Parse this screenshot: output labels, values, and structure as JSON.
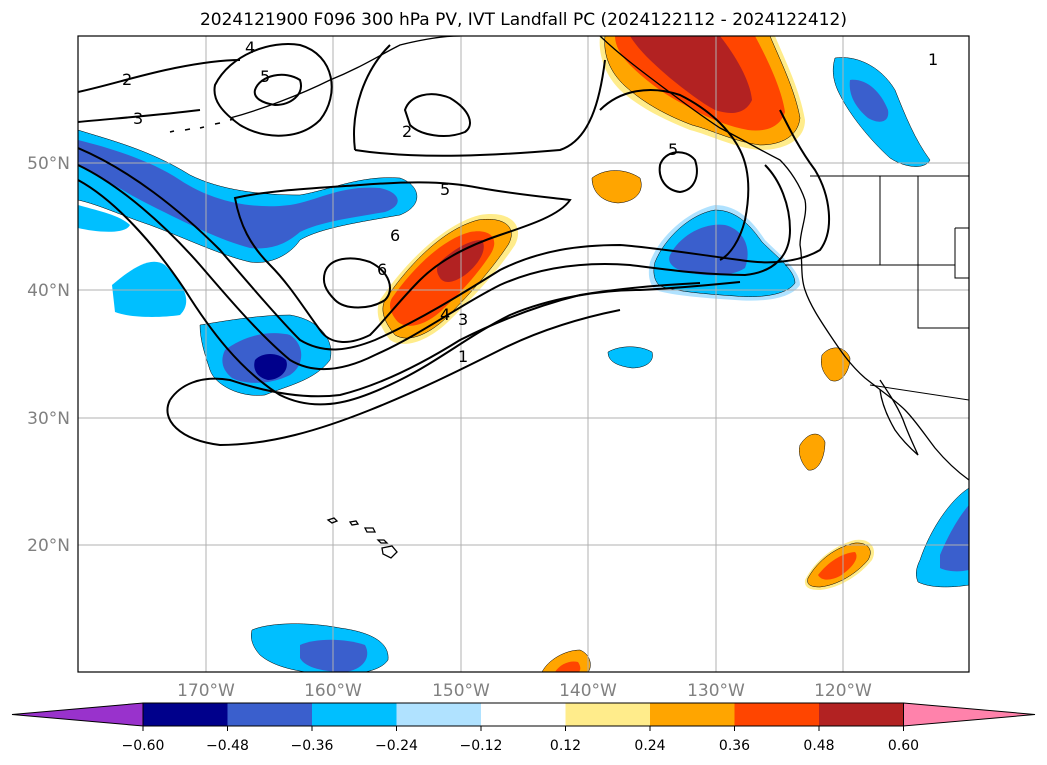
{
  "title": "2024121900 F096 300 hPa PV, IVT Landfall PC (2024122112 - 2024122412)",
  "lat_ticks": [
    "50°N",
    "40°N",
    "30°N",
    "20°N"
  ],
  "lon_ticks": [
    "170°W",
    "160°W",
    "150°W",
    "140°W",
    "130°W",
    "120°W"
  ],
  "colorbar": {
    "ticks": [
      "−0.60",
      "−0.48",
      "−0.36",
      "−0.24",
      "−0.12",
      "0.12",
      "0.24",
      "0.36",
      "0.48",
      "0.60"
    ],
    "colors": [
      "#9932cc",
      "#00008b",
      "#3a5fcd",
      "#00bfff",
      "#b0e2ff",
      "#ffffff",
      "#ffec8b",
      "#ffa500",
      "#ff4500",
      "#b22222",
      "#ff82ab"
    ]
  },
  "contour_labels": [
    "1",
    "2",
    "3",
    "4",
    "5",
    "6"
  ],
  "colors": {
    "neg_strong": "#00008b",
    "neg_mid": "#3a5fcd",
    "neg_light": "#00bfff",
    "neg_faint": "#b0e2ff",
    "pos_faint": "#ffec8b",
    "pos_light": "#ffa500",
    "pos_mid": "#ff4500",
    "pos_strong": "#b22222"
  }
}
